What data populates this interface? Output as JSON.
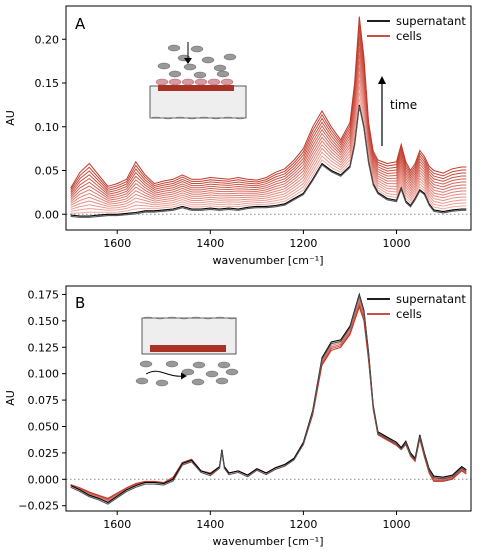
{
  "chart_data": [
    {
      "panel": "A",
      "type": "line",
      "xlabel": "wavenumber [cm$^{-1}$]",
      "xlabel_display": "wavenumber [cm⁻¹]",
      "ylabel": "AU",
      "xlim": [
        1710,
        840
      ],
      "ylim": [
        -0.018,
        0.238
      ],
      "xticks": [
        1600,
        1400,
        1200,
        1000
      ],
      "yticks": [
        0.0,
        0.05,
        0.1,
        0.15,
        0.2
      ],
      "ytick_labels": [
        "0.00",
        "0.05",
        "0.10",
        "0.15",
        "0.20"
      ],
      "zero_line": true,
      "legend": {
        "position": "top-right",
        "entries": [
          {
            "name": "supernatant",
            "color": "#000000"
          },
          {
            "name": "cells",
            "color": "#c0392b"
          }
        ]
      },
      "annotation": {
        "text": "time",
        "arrow": "up"
      },
      "n_cell_traces": 14,
      "cell_colors": [
        "#f6b4aa",
        "#c0392b"
      ],
      "supernatant": {
        "x": [
          1700,
          1680,
          1660,
          1640,
          1620,
          1600,
          1580,
          1560,
          1540,
          1520,
          1500,
          1480,
          1460,
          1440,
          1420,
          1400,
          1380,
          1360,
          1340,
          1320,
          1300,
          1280,
          1260,
          1240,
          1220,
          1200,
          1180,
          1160,
          1140,
          1120,
          1100,
          1090,
          1080,
          1070,
          1060,
          1050,
          1040,
          1020,
          1000,
          990,
          980,
          970,
          960,
          950,
          940,
          930,
          920,
          900,
          880,
          860,
          850
        ],
        "y": [
          -0.001,
          -0.002,
          -0.002,
          -0.001,
          0.0,
          0.0,
          0.001,
          0.002,
          0.004,
          0.004,
          0.005,
          0.006,
          0.009,
          0.006,
          0.006,
          0.007,
          0.006,
          0.007,
          0.006,
          0.008,
          0.009,
          0.009,
          0.01,
          0.012,
          0.018,
          0.024,
          0.04,
          0.058,
          0.05,
          0.045,
          0.055,
          0.08,
          0.125,
          0.1,
          0.06,
          0.035,
          0.025,
          0.018,
          0.016,
          0.03,
          0.015,
          0.01,
          0.018,
          0.028,
          0.024,
          0.012,
          0.005,
          0.003,
          0.005,
          0.006,
          0.006
        ]
      },
      "cells_final": {
        "x": [
          1700,
          1680,
          1660,
          1640,
          1620,
          1600,
          1580,
          1560,
          1540,
          1520,
          1500,
          1480,
          1460,
          1440,
          1420,
          1400,
          1380,
          1360,
          1340,
          1320,
          1300,
          1280,
          1260,
          1240,
          1220,
          1200,
          1180,
          1160,
          1140,
          1120,
          1100,
          1090,
          1080,
          1070,
          1060,
          1050,
          1040,
          1020,
          1000,
          990,
          980,
          970,
          960,
          950,
          940,
          930,
          920,
          900,
          880,
          860,
          850
        ],
        "y": [
          0.03,
          0.048,
          0.058,
          0.045,
          0.032,
          0.035,
          0.04,
          0.06,
          0.045,
          0.035,
          0.038,
          0.04,
          0.045,
          0.04,
          0.04,
          0.042,
          0.041,
          0.04,
          0.042,
          0.04,
          0.039,
          0.042,
          0.048,
          0.052,
          0.062,
          0.075,
          0.1,
          0.118,
          0.1,
          0.085,
          0.105,
          0.15,
          0.226,
          0.18,
          0.105,
          0.072,
          0.062,
          0.058,
          0.06,
          0.08,
          0.06,
          0.05,
          0.058,
          0.073,
          0.066,
          0.055,
          0.05,
          0.047,
          0.052,
          0.054,
          0.054
        ]
      }
    },
    {
      "panel": "B",
      "type": "line",
      "xlabel": "wavenumber [cm$^{-1}$]",
      "xlabel_display": "wavenumber [cm⁻¹]",
      "ylabel": "AU",
      "xlim": [
        1710,
        840
      ],
      "ylim": [
        -0.03,
        0.183
      ],
      "xticks": [
        1600,
        1400,
        1200,
        1000
      ],
      "yticks": [
        -0.025,
        0.0,
        0.025,
        0.05,
        0.075,
        0.1,
        0.125,
        0.15,
        0.175
      ],
      "ytick_labels": [
        "−0.025",
        "0.000",
        "0.025",
        "0.050",
        "0.075",
        "0.100",
        "0.125",
        "0.150",
        "0.175"
      ],
      "zero_line": true,
      "legend": {
        "position": "top-right",
        "entries": [
          {
            "name": "supernatant",
            "color": "#000000"
          },
          {
            "name": "cells",
            "color": "#c0392b"
          }
        ]
      },
      "n_cell_traces": 5,
      "cell_colors": [
        "#f6b4aa",
        "#c0392b"
      ],
      "supernatant": {
        "x": [
          1700,
          1680,
          1660,
          1640,
          1620,
          1600,
          1580,
          1560,
          1540,
          1520,
          1500,
          1480,
          1460,
          1440,
          1420,
          1400,
          1380,
          1375,
          1370,
          1360,
          1340,
          1320,
          1300,
          1280,
          1260,
          1240,
          1220,
          1200,
          1180,
          1160,
          1140,
          1120,
          1100,
          1090,
          1080,
          1070,
          1060,
          1050,
          1040,
          1020,
          1000,
          990,
          980,
          970,
          960,
          950,
          940,
          930,
          920,
          900,
          880,
          860,
          850
        ],
        "y": [
          -0.006,
          -0.01,
          -0.015,
          -0.018,
          -0.022,
          -0.016,
          -0.01,
          -0.006,
          -0.003,
          -0.003,
          -0.004,
          0.0,
          0.015,
          0.018,
          0.008,
          0.005,
          0.012,
          0.028,
          0.012,
          0.006,
          0.008,
          0.004,
          0.01,
          0.006,
          0.011,
          0.014,
          0.02,
          0.035,
          0.065,
          0.115,
          0.13,
          0.132,
          0.145,
          0.16,
          0.175,
          0.16,
          0.12,
          0.07,
          0.045,
          0.04,
          0.035,
          0.03,
          0.036,
          0.025,
          0.02,
          0.042,
          0.025,
          0.01,
          0.003,
          0.002,
          0.004,
          0.012,
          0.009
        ]
      },
      "cells_final": {
        "x": [
          1700,
          1680,
          1660,
          1640,
          1620,
          1600,
          1580,
          1560,
          1540,
          1520,
          1500,
          1480,
          1460,
          1440,
          1420,
          1400,
          1380,
          1375,
          1370,
          1360,
          1340,
          1320,
          1300,
          1280,
          1260,
          1240,
          1220,
          1200,
          1180,
          1160,
          1140,
          1120,
          1100,
          1090,
          1080,
          1070,
          1060,
          1050,
          1040,
          1020,
          1000,
          990,
          980,
          970,
          960,
          950,
          940,
          930,
          920,
          900,
          880,
          860,
          850
        ],
        "y": [
          -0.005,
          -0.008,
          -0.012,
          -0.015,
          -0.018,
          -0.013,
          -0.008,
          -0.004,
          -0.002,
          -0.002,
          -0.003,
          0.002,
          0.016,
          0.019,
          0.008,
          0.006,
          0.012,
          0.026,
          0.012,
          0.006,
          0.008,
          0.004,
          0.01,
          0.006,
          0.011,
          0.014,
          0.019,
          0.033,
          0.061,
          0.108,
          0.122,
          0.125,
          0.137,
          0.15,
          0.163,
          0.15,
          0.112,
          0.066,
          0.042,
          0.037,
          0.032,
          0.028,
          0.033,
          0.022,
          0.017,
          0.038,
          0.021,
          0.006,
          -0.002,
          -0.002,
          0.0,
          0.008,
          0.005
        ]
      }
    }
  ]
}
